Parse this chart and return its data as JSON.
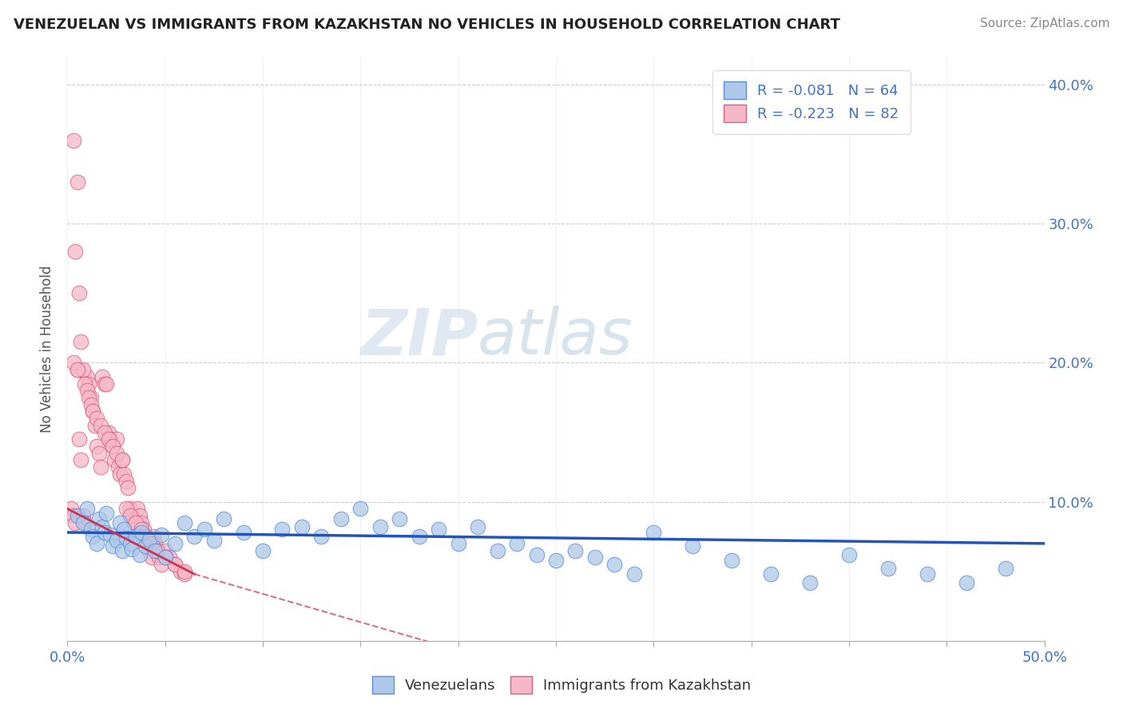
{
  "title": "VENEZUELAN VS IMMIGRANTS FROM KAZAKHSTAN NO VEHICLES IN HOUSEHOLD CORRELATION CHART",
  "source": "Source: ZipAtlas.com",
  "ylabel": "No Vehicles in Household",
  "xlim": [
    0.0,
    0.5
  ],
  "ylim": [
    0.0,
    0.42
  ],
  "blue_R": -0.081,
  "blue_N": 64,
  "pink_R": -0.223,
  "pink_N": 82,
  "blue_color": "#adc8e8",
  "pink_color": "#f5b8c8",
  "blue_edge_color": "#5b8dd9",
  "pink_edge_color": "#d96080",
  "blue_line_color": "#2255bb",
  "pink_line_color": "#cc3355",
  "watermark_zip": "ZIP",
  "watermark_atlas": "atlas",
  "background_color": "#ffffff",
  "legend_text_color": "#4472c4",
  "venezuelans_x": [
    0.005,
    0.008,
    0.01,
    0.012,
    0.013,
    0.015,
    0.016,
    0.018,
    0.019,
    0.02,
    0.022,
    0.023,
    0.025,
    0.027,
    0.028,
    0.029,
    0.03,
    0.032,
    0.033,
    0.035,
    0.037,
    0.038,
    0.04,
    0.042,
    0.045,
    0.048,
    0.05,
    0.055,
    0.06,
    0.065,
    0.07,
    0.075,
    0.08,
    0.09,
    0.1,
    0.11,
    0.12,
    0.13,
    0.14,
    0.15,
    0.16,
    0.17,
    0.18,
    0.19,
    0.2,
    0.21,
    0.22,
    0.23,
    0.24,
    0.25,
    0.26,
    0.27,
    0.28,
    0.29,
    0.3,
    0.32,
    0.34,
    0.36,
    0.38,
    0.4,
    0.42,
    0.44,
    0.46,
    0.48
  ],
  "venezuelans_y": [
    0.09,
    0.085,
    0.095,
    0.08,
    0.075,
    0.07,
    0.088,
    0.082,
    0.078,
    0.092,
    0.076,
    0.068,
    0.072,
    0.085,
    0.065,
    0.08,
    0.074,
    0.07,
    0.066,
    0.075,
    0.062,
    0.078,
    0.068,
    0.073,
    0.065,
    0.076,
    0.06,
    0.07,
    0.085,
    0.075,
    0.08,
    0.072,
    0.088,
    0.078,
    0.065,
    0.08,
    0.082,
    0.075,
    0.088,
    0.095,
    0.082,
    0.088,
    0.075,
    0.08,
    0.07,
    0.082,
    0.065,
    0.07,
    0.062,
    0.058,
    0.065,
    0.06,
    0.055,
    0.048,
    0.078,
    0.068,
    0.058,
    0.048,
    0.042,
    0.062,
    0.052,
    0.048,
    0.042,
    0.052
  ],
  "kazakhstan_x": [
    0.002,
    0.003,
    0.004,
    0.005,
    0.006,
    0.007,
    0.008,
    0.009,
    0.01,
    0.011,
    0.012,
    0.013,
    0.014,
    0.015,
    0.016,
    0.017,
    0.018,
    0.019,
    0.02,
    0.021,
    0.022,
    0.023,
    0.024,
    0.025,
    0.026,
    0.027,
    0.028,
    0.029,
    0.03,
    0.031,
    0.032,
    0.033,
    0.034,
    0.035,
    0.036,
    0.037,
    0.038,
    0.039,
    0.04,
    0.041,
    0.042,
    0.043,
    0.044,
    0.045,
    0.046,
    0.047,
    0.048,
    0.05,
    0.052,
    0.055,
    0.058,
    0.06,
    0.003,
    0.004,
    0.005,
    0.006,
    0.007,
    0.008,
    0.009,
    0.01,
    0.011,
    0.012,
    0.013,
    0.015,
    0.017,
    0.019,
    0.021,
    0.023,
    0.025,
    0.028,
    0.03,
    0.032,
    0.035,
    0.038,
    0.04,
    0.043,
    0.046,
    0.05,
    0.055,
    0.06,
    0.003,
    0.005
  ],
  "kazakhstan_y": [
    0.095,
    0.09,
    0.085,
    0.195,
    0.145,
    0.13,
    0.09,
    0.085,
    0.19,
    0.185,
    0.175,
    0.165,
    0.155,
    0.14,
    0.135,
    0.125,
    0.19,
    0.185,
    0.185,
    0.15,
    0.145,
    0.14,
    0.13,
    0.145,
    0.125,
    0.12,
    0.13,
    0.12,
    0.115,
    0.11,
    0.095,
    0.09,
    0.085,
    0.08,
    0.095,
    0.09,
    0.085,
    0.08,
    0.075,
    0.07,
    0.065,
    0.06,
    0.075,
    0.07,
    0.065,
    0.06,
    0.055,
    0.065,
    0.06,
    0.055,
    0.05,
    0.048,
    0.36,
    0.28,
    0.33,
    0.25,
    0.215,
    0.195,
    0.185,
    0.18,
    0.175,
    0.17,
    0.165,
    0.16,
    0.155,
    0.15,
    0.145,
    0.14,
    0.135,
    0.13,
    0.095,
    0.09,
    0.085,
    0.08,
    0.075,
    0.07,
    0.065,
    0.06,
    0.055,
    0.05,
    0.2,
    0.195
  ]
}
